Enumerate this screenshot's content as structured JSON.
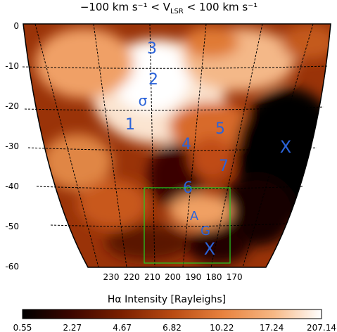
{
  "chart_data": {
    "type": "heatmap",
    "title": "−100 km s⁻¹ < V",
    "title_sub": "LSR",
    "title_tail": " < 100 km s⁻¹",
    "colorbar_label": "Hα Intensity [Rayleighs]",
    "colorbar_ticks": [
      "0.55",
      "2.27",
      "4.67",
      "6.82",
      "10.22",
      "17.24",
      "207.14"
    ],
    "colormap": [
      "#000000",
      "#3b0500",
      "#7a1f00",
      "#b84a12",
      "#e8823e",
      "#f7b885",
      "#ffffff"
    ],
    "y_ticks": [
      0,
      -10,
      -20,
      -30,
      -40,
      -50,
      -60
    ],
    "x_ticks": [
      230,
      220,
      210,
      200,
      190,
      180,
      170
    ],
    "grid": true,
    "region_labels": [
      "3",
      "2",
      "σ",
      "1",
      "5",
      "4",
      "X",
      "7",
      "6",
      "A",
      "G",
      "X"
    ],
    "label_color": "#2b63d9",
    "box_color": "#22d022"
  }
}
